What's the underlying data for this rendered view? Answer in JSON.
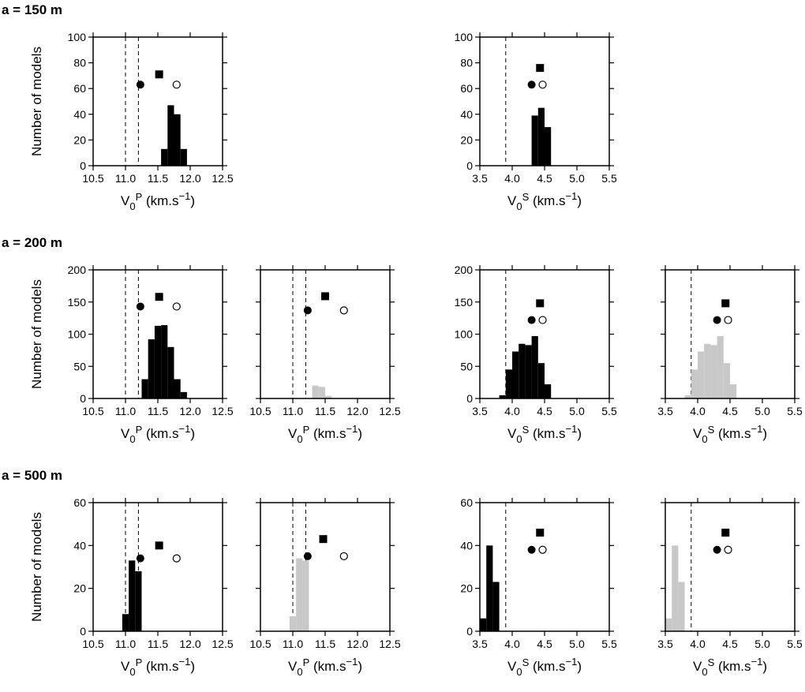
{
  "row_titles": [
    "a = 150 m",
    "a = 200 m",
    "a = 500 m"
  ],
  "chart_data": [
    {
      "type": "histogram",
      "ylabel": "Number of models",
      "xlabel": [
        "V",
        "0",
        "P",
        " (km.s",
        "−1",
        ")"
      ],
      "ytick_labels": true,
      "xlim": [
        10.5,
        12.5
      ],
      "xticks": [
        10.5,
        {
          "value": 11,
          "label": "11.0"
        },
        11.5,
        {
          "value": 12,
          "label": "12.0"
        },
        12.5
      ],
      "ylim": [
        0,
        100
      ],
      "yticks": [
        0,
        20,
        40,
        60,
        80,
        100
      ],
      "color": "#000000",
      "bins": [
        11.55,
        11.65,
        11.75,
        11.85,
        11.95
      ],
      "values": [
        13,
        47,
        40,
        13
      ],
      "reference_lines": [
        11.0,
        11.2
      ],
      "markers": [
        {
          "shape": "circle-filled",
          "x": 11.23,
          "y": 63
        },
        {
          "shape": "square",
          "x": 11.52,
          "y": 71
        },
        {
          "shape": "circle-open",
          "x": 11.79,
          "y": 63
        }
      ]
    },
    {
      "type": "histogram",
      "xlabel": [
        "V",
        "0",
        "S",
        " (km.s",
        "−1",
        ")"
      ],
      "ytick_labels": true,
      "xlim": [
        3.5,
        5.5
      ],
      "xticks": [
        3.5,
        {
          "value": 4,
          "label": "4.0"
        },
        4.5,
        {
          "value": 5,
          "label": "5.0"
        },
        5.5
      ],
      "ylim": [
        0,
        100
      ],
      "yticks": [
        0,
        20,
        40,
        60,
        80,
        100
      ],
      "color": "#000000",
      "bins": [
        4.3,
        4.4,
        4.5,
        4.6
      ],
      "values": [
        39,
        45,
        30
      ],
      "reference_lines": [
        3.9
      ],
      "markers": [
        {
          "shape": "circle-filled",
          "x": 4.3,
          "y": 63
        },
        {
          "shape": "square",
          "x": 4.43,
          "y": 76
        },
        {
          "shape": "circle-open",
          "x": 4.47,
          "y": 63
        }
      ]
    },
    {
      "type": "histogram",
      "ylabel": "Number of models",
      "xlabel": [
        "V",
        "0",
        "P",
        " (km.s",
        "−1",
        ")"
      ],
      "ytick_labels": true,
      "xlim": [
        10.5,
        12.5
      ],
      "xticks": [
        10.5,
        {
          "value": 11,
          "label": "11.0"
        },
        11.5,
        {
          "value": 12,
          "label": "12.0"
        },
        12.5
      ],
      "ylim": [
        0,
        200
      ],
      "yticks": [
        0,
        50,
        100,
        150,
        200
      ],
      "color": "#000000",
      "bins": [
        11.25,
        11.35,
        11.45,
        11.55,
        11.65,
        11.75,
        11.85,
        11.95
      ],
      "values": [
        30,
        92,
        113,
        114,
        80,
        30,
        10
      ],
      "reference_lines": [
        11.0,
        11.2
      ],
      "markers": [
        {
          "shape": "circle-filled",
          "x": 11.23,
          "y": 143
        },
        {
          "shape": "square",
          "x": 11.52,
          "y": 158
        },
        {
          "shape": "circle-open",
          "x": 11.79,
          "y": 143
        }
      ]
    },
    {
      "type": "histogram",
      "xlabel": [
        "V",
        "0",
        "P",
        " (km.s",
        "−1",
        ")"
      ],
      "ytick_labels": false,
      "xlim": [
        10.5,
        12.5
      ],
      "xticks": [
        10.5,
        {
          "value": 11,
          "label": "11.0"
        },
        11.5,
        {
          "value": 12,
          "label": "12.0"
        },
        12.5
      ],
      "ylim": [
        0,
        200
      ],
      "yticks": [
        0,
        50,
        100,
        150,
        200
      ],
      "color": "#c8c8c8",
      "bins": [
        11.3,
        11.4,
        11.5,
        11.6
      ],
      "values": [
        20,
        18,
        4
      ],
      "reference_lines": [
        11.0,
        11.2
      ],
      "markers": [
        {
          "shape": "circle-filled",
          "x": 11.23,
          "y": 137
        },
        {
          "shape": "square",
          "x": 11.5,
          "y": 159
        },
        {
          "shape": "circle-open",
          "x": 11.79,
          "y": 137
        }
      ]
    },
    {
      "type": "histogram",
      "xlabel": [
        "V",
        "0",
        "S",
        " (km.s",
        "−1",
        ")"
      ],
      "ytick_labels": true,
      "xlim": [
        3.5,
        5.5
      ],
      "xticks": [
        3.5,
        {
          "value": 4,
          "label": "4.0"
        },
        4.5,
        {
          "value": 5,
          "label": "5.0"
        },
        5.5
      ],
      "ylim": [
        0,
        200
      ],
      "yticks": [
        0,
        50,
        100,
        150,
        200
      ],
      "color": "#000000",
      "bins": [
        3.8,
        3.9,
        4.0,
        4.1,
        4.2,
        4.3,
        4.4,
        4.5,
        4.6
      ],
      "values": [
        5,
        45,
        73,
        85,
        83,
        97,
        55,
        22
      ],
      "reference_lines": [
        3.9
      ],
      "markers": [
        {
          "shape": "circle-filled",
          "x": 4.3,
          "y": 122
        },
        {
          "shape": "square",
          "x": 4.43,
          "y": 148
        },
        {
          "shape": "circle-open",
          "x": 4.47,
          "y": 122
        }
      ]
    },
    {
      "type": "histogram",
      "xlabel": [
        "V",
        "0",
        "S",
        " (km.s",
        "−1",
        ")"
      ],
      "ytick_labels": false,
      "xlim": [
        3.5,
        5.5
      ],
      "xticks": [
        3.5,
        {
          "value": 4,
          "label": "4.0"
        },
        4.5,
        {
          "value": 5,
          "label": "5.0"
        },
        5.5
      ],
      "ylim": [
        0,
        200
      ],
      "yticks": [
        0,
        50,
        100,
        150,
        200
      ],
      "color": "#c8c8c8",
      "bins": [
        3.8,
        3.9,
        4.0,
        4.1,
        4.2,
        4.3,
        4.4,
        4.5,
        4.6
      ],
      "values": [
        5,
        45,
        73,
        85,
        83,
        97,
        55,
        22
      ],
      "reference_lines": [
        3.9
      ],
      "markers": [
        {
          "shape": "circle-filled",
          "x": 4.3,
          "y": 122
        },
        {
          "shape": "square",
          "x": 4.43,
          "y": 148
        },
        {
          "shape": "circle-open",
          "x": 4.47,
          "y": 122
        }
      ]
    },
    {
      "type": "histogram",
      "ylabel": "Number of models",
      "xlabel": [
        "V",
        "0",
        "P",
        " (km.s",
        "−1",
        ")"
      ],
      "ytick_labels": true,
      "xlim": [
        10.5,
        12.5
      ],
      "xticks": [
        10.5,
        {
          "value": 11,
          "label": "11.0"
        },
        11.5,
        {
          "value": 12,
          "label": "12.0"
        },
        12.5
      ],
      "ylim": [
        0,
        60
      ],
      "yticks": [
        0,
        20,
        40,
        60
      ],
      "color": "#000000",
      "bins": [
        10.95,
        11.05,
        11.15,
        11.25
      ],
      "values": [
        8,
        33,
        28
      ],
      "reference_lines": [
        11.0,
        11.2
      ],
      "markers": [
        {
          "shape": "circle-filled",
          "x": 11.23,
          "y": 34
        },
        {
          "shape": "square",
          "x": 11.52,
          "y": 40
        },
        {
          "shape": "circle-open",
          "x": 11.79,
          "y": 34
        }
      ]
    },
    {
      "type": "histogram",
      "xlabel": [
        "V",
        "0",
        "P",
        " (km.s",
        "−1",
        ")"
      ],
      "ytick_labels": false,
      "xlim": [
        10.5,
        12.5
      ],
      "xticks": [
        10.5,
        {
          "value": 11,
          "label": "11.0"
        },
        11.5,
        {
          "value": 12,
          "label": "12.0"
        },
        12.5
      ],
      "ylim": [
        0,
        60
      ],
      "yticks": [
        0,
        20,
        40,
        60
      ],
      "color": "#c8c8c8",
      "bins": [
        10.95,
        11.05,
        11.15,
        11.25
      ],
      "values": [
        7,
        34,
        33
      ],
      "reference_lines": [
        11.0,
        11.2
      ],
      "markers": [
        {
          "shape": "circle-filled",
          "x": 11.23,
          "y": 35
        },
        {
          "shape": "square",
          "x": 11.47,
          "y": 43
        },
        {
          "shape": "circle-open",
          "x": 11.79,
          "y": 35
        }
      ]
    },
    {
      "type": "histogram",
      "xlabel": [
        "V",
        "0",
        "S",
        " (km.s",
        "−1",
        ")"
      ],
      "ytick_labels": true,
      "xlim": [
        3.5,
        5.5
      ],
      "xticks": [
        3.5,
        {
          "value": 4,
          "label": "4.0"
        },
        4.5,
        {
          "value": 5,
          "label": "5.0"
        },
        5.5
      ],
      "ylim": [
        0,
        60
      ],
      "yticks": [
        0,
        20,
        40,
        60
      ],
      "color": "#000000",
      "bins": [
        3.5,
        3.6,
        3.7,
        3.8
      ],
      "values": [
        6,
        40,
        23
      ],
      "reference_lines": [
        3.9
      ],
      "markers": [
        {
          "shape": "circle-filled",
          "x": 4.3,
          "y": 38
        },
        {
          "shape": "square",
          "x": 4.43,
          "y": 46
        },
        {
          "shape": "circle-open",
          "x": 4.47,
          "y": 38
        }
      ]
    },
    {
      "type": "histogram",
      "xlabel": [
        "V",
        "0",
        "S",
        " (km.s",
        "−1",
        ")"
      ],
      "ytick_labels": false,
      "xlim": [
        3.5,
        5.5
      ],
      "xticks": [
        3.5,
        {
          "value": 4,
          "label": "4.0"
        },
        4.5,
        {
          "value": 5,
          "label": "5.0"
        },
        5.5
      ],
      "ylim": [
        0,
        60
      ],
      "yticks": [
        0,
        20,
        40,
        60
      ],
      "color": "#c8c8c8",
      "bins": [
        3.5,
        3.6,
        3.7,
        3.8
      ],
      "values": [
        6,
        40,
        23
      ],
      "reference_lines": [
        3.9
      ],
      "markers": [
        {
          "shape": "circle-filled",
          "x": 4.3,
          "y": 38
        },
        {
          "shape": "square",
          "x": 4.43,
          "y": 46
        },
        {
          "shape": "circle-open",
          "x": 4.47,
          "y": 38
        }
      ]
    }
  ]
}
